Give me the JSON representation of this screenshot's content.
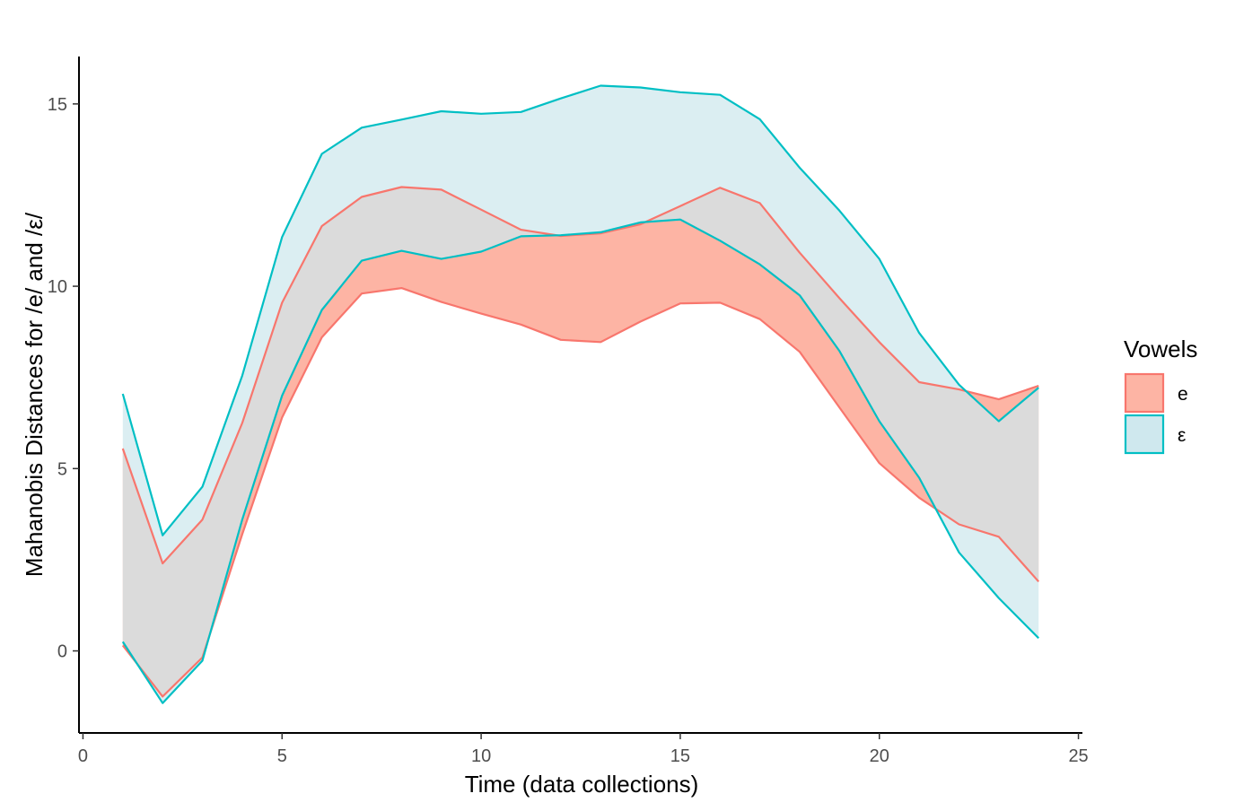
{
  "chart_data": {
    "type": "area",
    "xlabel": "Time (data collections)",
    "ylabel": "Mahanobis Distances for /e/ and /ε/",
    "xlim": [
      -0.1,
      25.1
    ],
    "ylim": [
      -2.25,
      16.3
    ],
    "xticks": [
      0,
      5,
      10,
      15,
      20,
      25
    ],
    "yticks": [
      0,
      5,
      10,
      15
    ],
    "grid": false,
    "legend": {
      "title": "Vowels",
      "position": "right"
    },
    "x": [
      1,
      2,
      3,
      4,
      5,
      6,
      7,
      8,
      9,
      10,
      11,
      12,
      13,
      14,
      15,
      16,
      17,
      18,
      19,
      20,
      21,
      22,
      23,
      24
    ],
    "series": [
      {
        "name": "e",
        "line_color": "#f8766d",
        "fill_color": "#fdb4a4",
        "upper": [
          5.55,
          2.4,
          3.6,
          6.25,
          9.55,
          11.65,
          12.45,
          12.72,
          12.65,
          12.1,
          11.55,
          11.38,
          11.45,
          11.7,
          12.2,
          12.7,
          12.28,
          10.92,
          9.67,
          8.47,
          7.37,
          7.17,
          6.9,
          7.27
        ],
        "lower": [
          0.15,
          -1.25,
          -0.18,
          3.2,
          6.4,
          8.6,
          9.8,
          9.95,
          9.57,
          9.25,
          8.95,
          8.53,
          8.47,
          9.03,
          9.53,
          9.55,
          9.1,
          8.2,
          6.67,
          5.15,
          4.2,
          3.47,
          3.13,
          1.9
        ]
      },
      {
        "name": "ε",
        "line_color": "#00bfc4",
        "fill_color": "#cfe8ee",
        "upper": [
          7.05,
          3.17,
          4.5,
          7.55,
          11.35,
          13.63,
          14.35,
          14.57,
          14.8,
          14.73,
          14.78,
          15.15,
          15.5,
          15.45,
          15.32,
          15.25,
          14.58,
          13.25,
          12.07,
          10.75,
          8.72,
          7.3,
          6.3,
          7.22
        ],
        "lower": [
          0.25,
          -1.43,
          -0.27,
          3.6,
          7.0,
          9.35,
          10.7,
          10.97,
          10.75,
          10.95,
          11.37,
          11.4,
          11.48,
          11.75,
          11.83,
          11.25,
          10.6,
          9.75,
          8.22,
          6.3,
          4.75,
          2.7,
          1.45,
          0.35
        ]
      }
    ]
  }
}
